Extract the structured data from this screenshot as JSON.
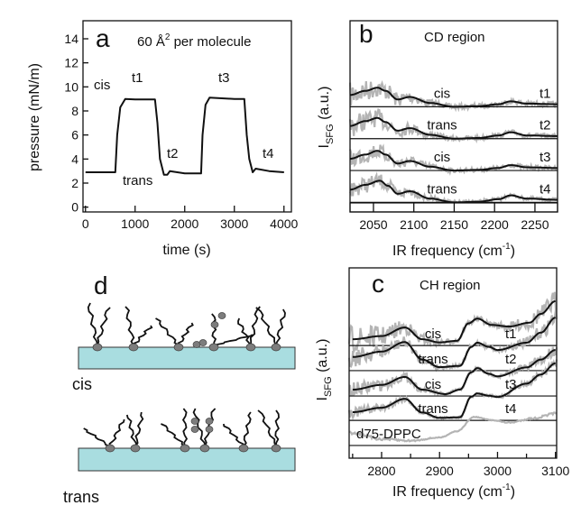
{
  "chart_data": [
    {
      "panel": "a",
      "type": "line",
      "annotation": "60 Å",
      "annotation_sup": "2",
      "annotation_rest": " per molecule",
      "xlabel": "time (s)",
      "ylabel": "pressure (mN/m)",
      "xlim": [
        -50,
        4150
      ],
      "ylim": [
        -0.4,
        15.5
      ],
      "xticks": [
        "0",
        "1000",
        "2000",
        "3000",
        "4000"
      ],
      "yticks": [
        "0",
        "2",
        "4",
        "6",
        "8",
        "10",
        "12",
        "14"
      ],
      "labels": {
        "cis": "cis",
        "trans": "trans",
        "t1": "t1",
        "t2": "t2",
        "t3": "t3",
        "t4": "t4"
      },
      "series": [
        {
          "points": [
            [
              0,
              2.9
            ],
            [
              600,
              2.9
            ],
            [
              640,
              6
            ],
            [
              700,
              8.3
            ],
            [
              800,
              9.0
            ],
            [
              1000,
              8.95
            ],
            [
              1400,
              8.95
            ],
            [
              1450,
              7
            ],
            [
              1500,
              4
            ],
            [
              1580,
              2.7
            ],
            [
              1650,
              2.7
            ],
            [
              1700,
              3.0
            ],
            [
              2000,
              2.8
            ],
            [
              2330,
              2.8
            ],
            [
              2360,
              6
            ],
            [
              2420,
              8.5
            ],
            [
              2500,
              9.1
            ],
            [
              3000,
              9.0
            ],
            [
              3200,
              9.0
            ],
            [
              3250,
              6
            ],
            [
              3300,
              4
            ],
            [
              3370,
              2.9
            ],
            [
              3430,
              3.2
            ],
            [
              3700,
              3.0
            ],
            [
              4000,
              2.9
            ]
          ]
        }
      ],
      "color": "#111111"
    },
    {
      "panel": "b",
      "type": "line",
      "title": "CD region",
      "xlabel": "IR frequency (cm",
      "xlabel_sup": "-1",
      "xlabel_end": ")",
      "ylabel": "I",
      "ylabel_sub": "SFG",
      "ylabel_rest": " (a.u.)",
      "xlim": [
        2021,
        2278
      ],
      "ylim": [
        0,
        6
      ],
      "xticks": [
        "2050",
        "2100",
        "2150",
        "2200",
        "2250"
      ],
      "traces": [
        {
          "state": "cis",
          "time": "t1",
          "offset": 3.3,
          "fit": [
            [
              2021,
              0.37
            ],
            [
              2040,
              0.5
            ],
            [
              2055,
              0.6
            ],
            [
              2065,
              0.5
            ],
            [
              2080,
              0.23
            ],
            [
              2095,
              0.31
            ],
            [
              2120,
              0.12
            ],
            [
              2150,
              0.0
            ],
            [
              2180,
              0.02
            ],
            [
              2205,
              0.08
            ],
            [
              2220,
              0.17
            ],
            [
              2240,
              0.1
            ],
            [
              2278,
              0.08
            ]
          ]
        },
        {
          "state": "trans",
          "time": "t2",
          "offset": 2.3,
          "fit": [
            [
              2021,
              0.4
            ],
            [
              2040,
              0.55
            ],
            [
              2055,
              0.65
            ],
            [
              2065,
              0.52
            ],
            [
              2080,
              0.25
            ],
            [
              2095,
              0.33
            ],
            [
              2120,
              0.12
            ],
            [
              2150,
              0.0
            ],
            [
              2180,
              0.02
            ],
            [
              2205,
              0.1
            ],
            [
              2220,
              0.2
            ],
            [
              2240,
              0.1
            ],
            [
              2278,
              0.08
            ]
          ]
        },
        {
          "state": "cis",
          "time": "t3",
          "offset": 1.3,
          "fit": [
            [
              2021,
              0.37
            ],
            [
              2040,
              0.5
            ],
            [
              2055,
              0.62
            ],
            [
              2065,
              0.5
            ],
            [
              2080,
              0.22
            ],
            [
              2095,
              0.3
            ],
            [
              2120,
              0.12
            ],
            [
              2150,
              0.0
            ],
            [
              2180,
              0.02
            ],
            [
              2205,
              0.08
            ],
            [
              2220,
              0.17
            ],
            [
              2240,
              0.1
            ],
            [
              2278,
              0.08
            ]
          ]
        },
        {
          "state": "trans",
          "time": "t4",
          "offset": 0.3,
          "fit": [
            [
              2021,
              0.4
            ],
            [
              2040,
              0.55
            ],
            [
              2058,
              0.68
            ],
            [
              2068,
              0.52
            ],
            [
              2080,
              0.27
            ],
            [
              2095,
              0.35
            ],
            [
              2120,
              0.12
            ],
            [
              2150,
              0.0
            ],
            [
              2180,
              0.02
            ],
            [
              2205,
              0.1
            ],
            [
              2220,
              0.22
            ],
            [
              2240,
              0.12
            ],
            [
              2278,
              0.08
            ]
          ]
        }
      ],
      "raw_color": "#b4b4b4",
      "fit_color": "#111111"
    },
    {
      "panel": "c",
      "type": "line",
      "title": "CH region",
      "xlabel": "IR frequency (cm",
      "xlabel_sup": "-1",
      "xlabel_end": ")",
      "ylabel": "I",
      "ylabel_sub": "SFG",
      "ylabel_rest": " (a.u.)",
      "xlim": [
        2744,
        3102
      ],
      "ylim": [
        0,
        6
      ],
      "xticks": [
        "2800",
        "2900",
        "3000",
        "3100"
      ],
      "traces": [
        {
          "state": "cis",
          "time": "t1",
          "offset": 3.55,
          "fit": [
            [
              2750,
              0.2
            ],
            [
              2800,
              0.3
            ],
            [
              2840,
              0.57
            ],
            [
              2870,
              0.2
            ],
            [
              2900,
              0.1
            ],
            [
              2930,
              0.15
            ],
            [
              2950,
              0.7
            ],
            [
              2965,
              0.85
            ],
            [
              2990,
              0.65
            ],
            [
              3020,
              0.6
            ],
            [
              3055,
              0.72
            ],
            [
              3075,
              1.0
            ],
            [
              3100,
              1.4
            ]
          ]
        },
        {
          "state": "trans",
          "time": "t2",
          "offset": 2.76,
          "fit": [
            [
              2750,
              0.43
            ],
            [
              2800,
              0.6
            ],
            [
              2840,
              0.9
            ],
            [
              2870,
              0.35
            ],
            [
              2900,
              0.11
            ],
            [
              2935,
              0.15
            ],
            [
              2955,
              0.75
            ],
            [
              2965,
              0.88
            ],
            [
              2985,
              0.75
            ],
            [
              3000,
              0.65
            ],
            [
              3050,
              0.88
            ],
            [
              3075,
              1.2
            ],
            [
              3100,
              1.67
            ]
          ]
        },
        {
          "state": "cis",
          "time": "t3",
          "offset": 1.96,
          "fit": [
            [
              2750,
              0.2
            ],
            [
              2800,
              0.35
            ],
            [
              2840,
              0.6
            ],
            [
              2870,
              0.2
            ],
            [
              2910,
              0.06
            ],
            [
              2935,
              0.2
            ],
            [
              2955,
              0.75
            ],
            [
              2965,
              0.88
            ],
            [
              2985,
              0.7
            ],
            [
              3000,
              0.62
            ],
            [
              3050,
              0.9
            ],
            [
              3075,
              1.15
            ],
            [
              3100,
              1.45
            ]
          ]
        },
        {
          "state": "trans",
          "time": "t4",
          "offset": 1.19,
          "fit": [
            [
              2750,
              0.26
            ],
            [
              2800,
              0.4
            ],
            [
              2840,
              0.68
            ],
            [
              2870,
              0.25
            ],
            [
              2900,
              0.08
            ],
            [
              2935,
              0.1
            ],
            [
              2955,
              0.75
            ],
            [
              2965,
              0.85
            ],
            [
              2985,
              0.78
            ],
            [
              3000,
              0.74
            ],
            [
              3050,
              1.16
            ],
            [
              3075,
              1.45
            ],
            [
              3100,
              1.8
            ]
          ]
        },
        {
          "state": "d75-DPPC",
          "time": "",
          "offset": 0.4,
          "gray_only": true,
          "fit": [
            [
              2750,
              0.4
            ],
            [
              2800,
              0.2
            ],
            [
              2850,
              0.15
            ],
            [
              2900,
              0.25
            ],
            [
              2930,
              0.45
            ],
            [
              2960,
              0.9
            ],
            [
              2990,
              0.8
            ],
            [
              3020,
              0.72
            ],
            [
              3060,
              0.85
            ],
            [
              3100,
              1.0
            ]
          ]
        }
      ],
      "raw_color": "#b4b4b4",
      "fit_color": "#111111"
    }
  ],
  "panel_d": {
    "letter": "d",
    "top_label": "cis",
    "bottom_label": "trans",
    "substrate_color": "#a9dde0",
    "headgroup_color": "#7d7d7d"
  },
  "panel_letters": {
    "a": "a",
    "b": "b",
    "c": "c"
  }
}
